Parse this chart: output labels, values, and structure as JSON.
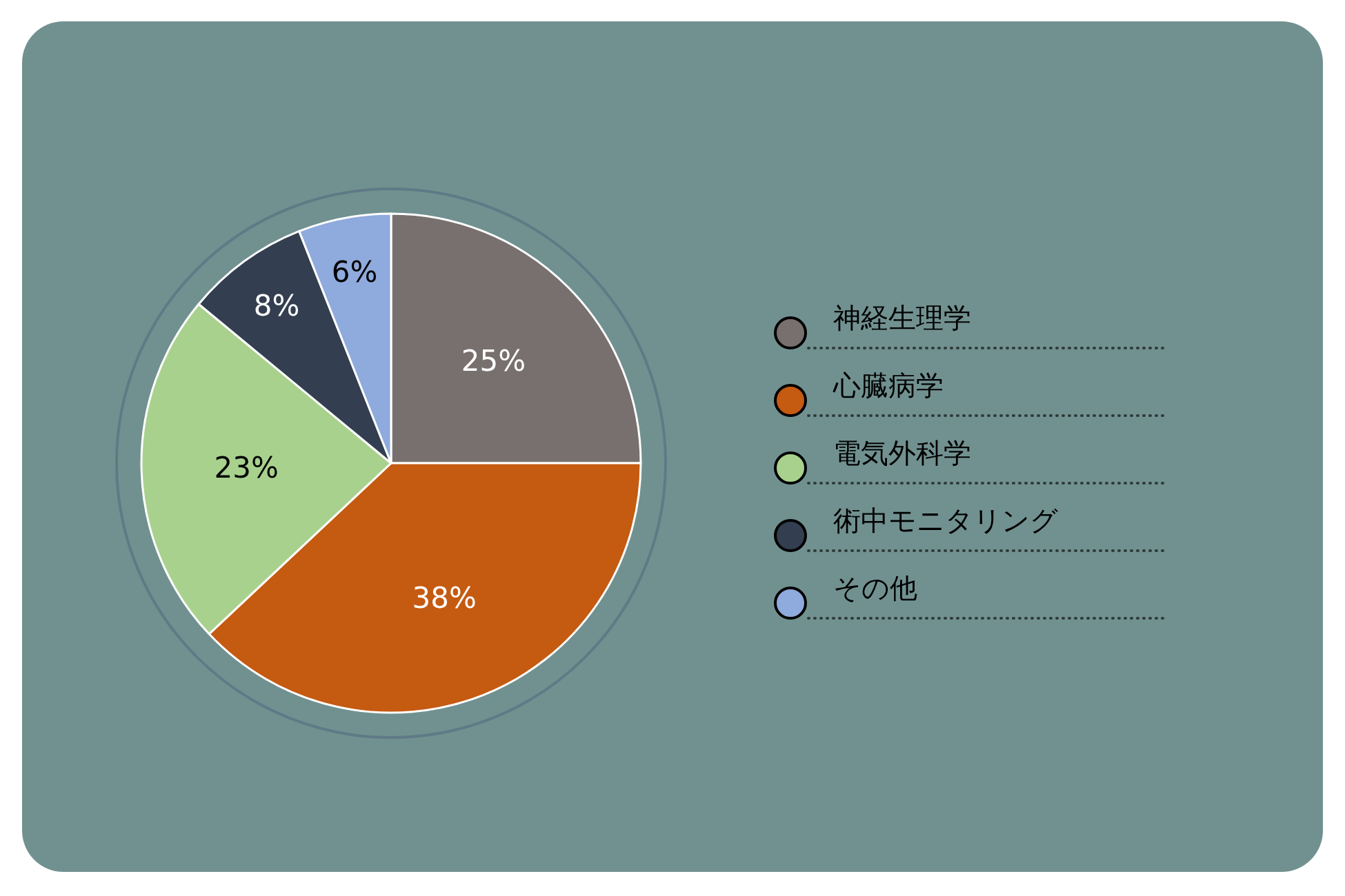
{
  "chart_data": {
    "type": "pie",
    "categories": [
      "神経生理学",
      "心臓病学",
      "電気外科学",
      "術中モニタリング",
      "その他"
    ],
    "values": [
      25,
      38,
      23,
      8,
      6
    ],
    "colors": [
      "#77706f",
      "#c55a11",
      "#a9d18e",
      "#333f50",
      "#8faadc"
    ],
    "value_labels": [
      "25%",
      "38%",
      "23%",
      "8%",
      "6%"
    ],
    "legend": "right"
  }
}
